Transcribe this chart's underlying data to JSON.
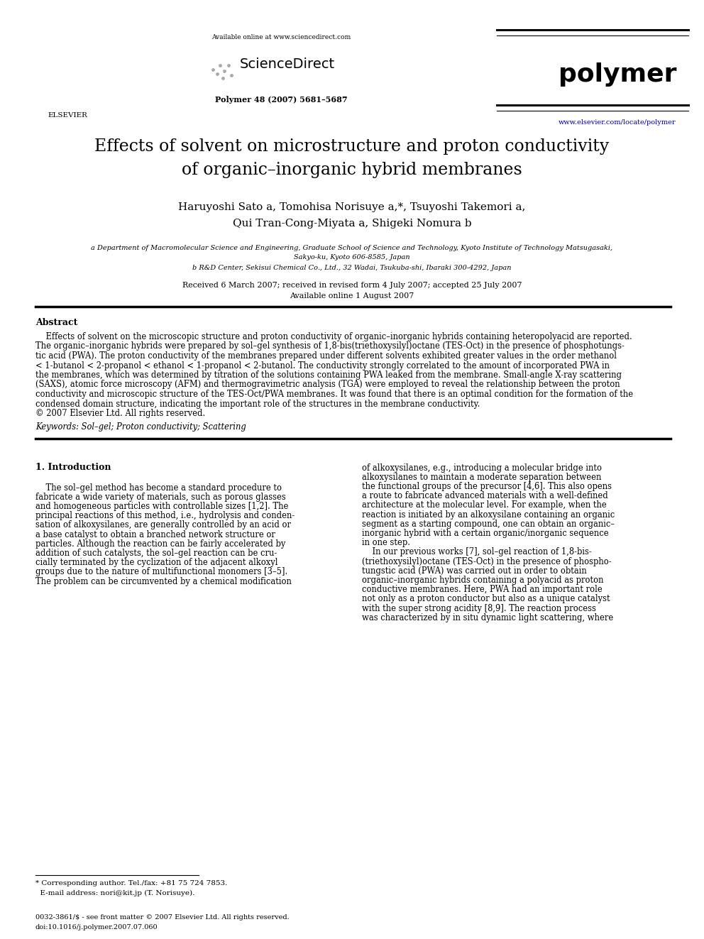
{
  "bg_color": "#ffffff",
  "page_width": 9.92,
  "page_height": 13.23,
  "dpi": 100,
  "header": {
    "available_online_text": "Available online at www.sciencedirect.com",
    "sciencedirect_text": "ScienceDirect",
    "journal_name": "polymer",
    "journal_info": "Polymer 48 (2007) 5681–5687",
    "journal_url": "www.elsevier.com/locate/polymer",
    "elsevier_label": "ELSEVIER"
  },
  "title_line1": "Effects of solvent on microstructure and proton conductivity",
  "title_line2": "of organic–inorganic hybrid membranes",
  "author_line1": "Haruyoshi Sato a, Tomohisa Norisuye a,*, Tsuyoshi Takemori a,",
  "author_line2": "Qui Tran-Cong-Miyata a, Shigeki Nomura b",
  "affil_a": "a Department of Macromolecular Science and Engineering, Graduate School of Science and Technology, Kyoto Institute of Technology Matsugasaki,",
  "affil_a2": "Sakyo-ku, Kyoto 606-8585, Japan",
  "affil_b": "b R&D Center, Sekisui Chemical Co., Ltd., 32 Wadai, Tsukuba-shi, Ibaraki 300-4292, Japan",
  "received_line1": "Received 6 March 2007; received in revised form 4 July 2007; accepted 25 July 2007",
  "received_line2": "Available online 1 August 2007",
  "abstract_title": "Abstract",
  "abstract_lines": [
    "    Effects of solvent on the microscopic structure and proton conductivity of organic–inorganic hybrids containing heteropolyacid are reported.",
    "The organic–inorganic hybrids were prepared by sol–gel synthesis of 1,8-bis(triethoxysilyl)octane (TES-Oct) in the presence of phosphotungs-",
    "tic acid (PWA). The proton conductivity of the membranes prepared under different solvents exhibited greater values in the order methanol",
    "< 1-butanol < 2-propanol < ethanol < 1-propanol < 2-butanol. The conductivity strongly correlated to the amount of incorporated PWA in",
    "the membranes, which was determined by titration of the solutions containing PWA leaked from the membrane. Small-angle X-ray scattering",
    "(SAXS), atomic force microscopy (AFM) and thermogravimetric analysis (TGA) were employed to reveal the relationship between the proton",
    "conductivity and microscopic structure of the TES-Oct/PWA membranes. It was found that there is an optimal condition for the formation of the",
    "condensed domain structure, indicating the important role of the structures in the membrane conductivity.",
    "© 2007 Elsevier Ltd. All rights reserved."
  ],
  "keywords": "Keywords: Sol–gel; Proton conductivity; Scattering",
  "section1_title": "1. Introduction",
  "left_col_lines": [
    "    The sol–gel method has become a standard procedure to",
    "fabricate a wide variety of materials, such as porous glasses",
    "and homogeneous particles with controllable sizes [1,2]. The",
    "principal reactions of this method, i.e., hydrolysis and conden-",
    "sation of alkoxysilanes, are generally controlled by an acid or",
    "a base catalyst to obtain a branched network structure or",
    "particles. Although the reaction can be fairly accelerated by",
    "addition of such catalysts, the sol–gel reaction can be cru-",
    "cially terminated by the cyclization of the adjacent alkoxyl",
    "groups due to the nature of multifunctional monomers [3–5].",
    "The problem can be circumvented by a chemical modification"
  ],
  "right_col_lines": [
    "of alkoxysilanes, e.g., introducing a molecular bridge into",
    "alkoxysilanes to maintain a moderate separation between",
    "the functional groups of the precursor [4,6]. This also opens",
    "a route to fabricate advanced materials with a well-defined",
    "architecture at the molecular level. For example, when the",
    "reaction is initiated by an alkoxysilane containing an organic",
    "segment as a starting compound, one can obtain an organic–",
    "inorganic hybrid with a certain organic/inorganic sequence",
    "in one step.",
    "    In our previous works [7], sol–gel reaction of 1,8-bis-",
    "(triethoxysilyl)octane (TES-Oct) in the presence of phospho-",
    "tungstic acid (PWA) was carried out in order to obtain",
    "organic–inorganic hybrids containing a polyacid as proton",
    "conductive membranes. Here, PWA had an important role",
    "not only as a proton conductor but also as a unique catalyst",
    "with the super strong acidity [8,9]. The reaction process",
    "was characterized by in situ dynamic light scattering, where"
  ],
  "footnote_line1": "* Corresponding author. Tel./fax: +81 75 724 7853.",
  "footnote_line2": "  E-mail address: nori@kit.jp (T. Norisuye).",
  "copyright1": "0032-3861/$ - see front matter © 2007 Elsevier Ltd. All rights reserved.",
  "copyright2": "doi:10.1016/j.polymer.2007.07.060",
  "link_color": "#000099",
  "text_color": "#000000",
  "rule_color": "#000000"
}
